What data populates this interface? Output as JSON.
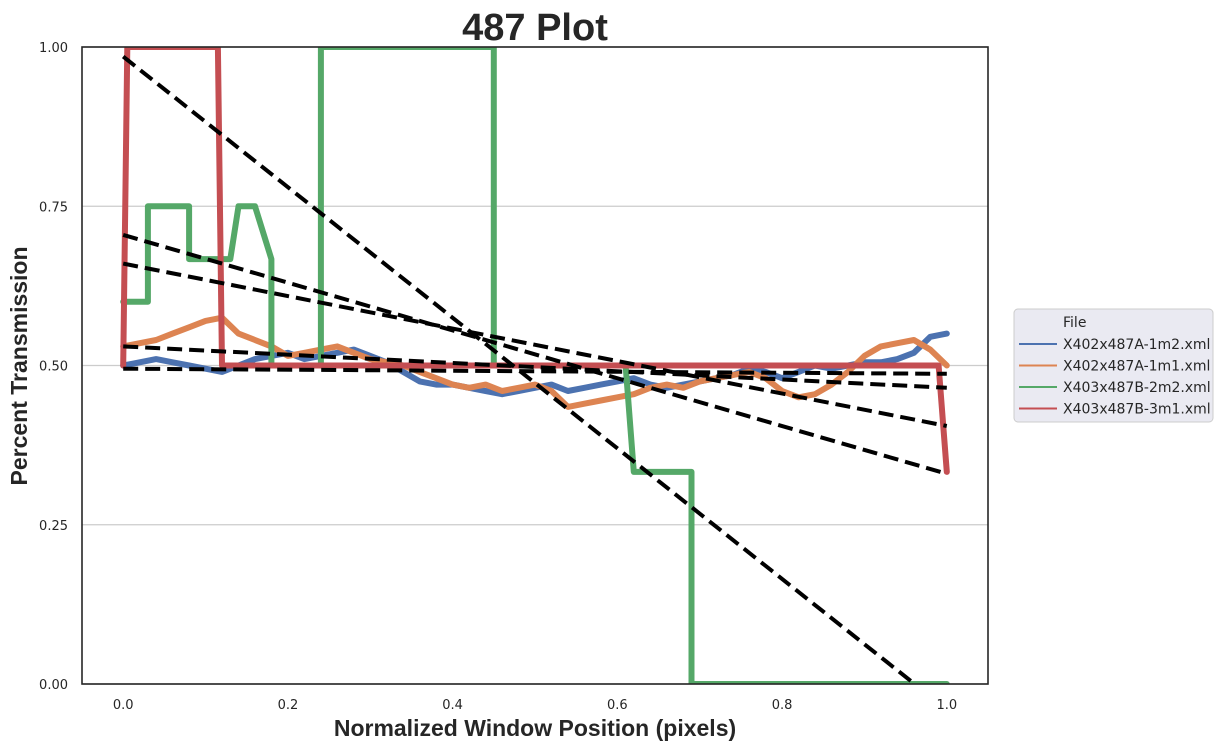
{
  "chart_data": {
    "type": "line",
    "title": "487 Plot",
    "xlabel": "Normalized Window Position (pixels)",
    "ylabel": "Percent Transmission",
    "xlim": [
      -0.05,
      1.05
    ],
    "ylim": [
      0.0,
      1.0
    ],
    "xticks": [
      0.0,
      0.2,
      0.4,
      0.6,
      0.8,
      1.0
    ],
    "xtick_labels": [
      "0.0",
      "0.2",
      "0.4",
      "0.6",
      "0.8",
      "1.0"
    ],
    "yticks": [
      0.0,
      0.25,
      0.5,
      0.75,
      1.0
    ],
    "ytick_labels": [
      "0.00",
      "0.25",
      "0.50",
      "0.75",
      "1.00"
    ],
    "grid": "horizontal",
    "legend": {
      "title": "File",
      "placement": "outside-right"
    },
    "series": [
      {
        "name": "X402x487A-1m2.xml",
        "color": "#4c72b0",
        "x": [
          0.0,
          0.02,
          0.04,
          0.06,
          0.08,
          0.1,
          0.12,
          0.14,
          0.16,
          0.18,
          0.2,
          0.22,
          0.24,
          0.26,
          0.28,
          0.3,
          0.32,
          0.34,
          0.36,
          0.38,
          0.4,
          0.42,
          0.44,
          0.46,
          0.48,
          0.5,
          0.52,
          0.54,
          0.56,
          0.58,
          0.6,
          0.62,
          0.64,
          0.66,
          0.68,
          0.7,
          0.72,
          0.74,
          0.76,
          0.78,
          0.8,
          0.82,
          0.84,
          0.86,
          0.88,
          0.9,
          0.92,
          0.94,
          0.96,
          0.98,
          1.0
        ],
        "values": [
          0.5,
          0.505,
          0.51,
          0.505,
          0.5,
          0.495,
          0.49,
          0.5,
          0.51,
          0.515,
          0.52,
          0.51,
          0.515,
          0.52,
          0.525,
          0.515,
          0.505,
          0.49,
          0.475,
          0.47,
          0.47,
          0.465,
          0.46,
          0.455,
          0.46,
          0.465,
          0.47,
          0.46,
          0.465,
          0.47,
          0.475,
          0.48,
          0.47,
          0.465,
          0.47,
          0.475,
          0.48,
          0.485,
          0.495,
          0.49,
          0.48,
          0.49,
          0.5,
          0.495,
          0.5,
          0.505,
          0.505,
          0.51,
          0.52,
          0.545,
          0.55
        ]
      },
      {
        "name": "X402x487A-1m1.xml",
        "color": "#dd8452",
        "x": [
          0.0,
          0.02,
          0.04,
          0.06,
          0.08,
          0.1,
          0.12,
          0.14,
          0.16,
          0.18,
          0.2,
          0.22,
          0.24,
          0.26,
          0.28,
          0.3,
          0.32,
          0.34,
          0.36,
          0.38,
          0.4,
          0.42,
          0.44,
          0.46,
          0.48,
          0.5,
          0.52,
          0.54,
          0.56,
          0.58,
          0.6,
          0.62,
          0.64,
          0.66,
          0.68,
          0.7,
          0.72,
          0.74,
          0.76,
          0.78,
          0.8,
          0.82,
          0.84,
          0.86,
          0.88,
          0.9,
          0.92,
          0.94,
          0.96,
          0.98,
          1.0
        ],
        "values": [
          0.53,
          0.535,
          0.54,
          0.55,
          0.56,
          0.57,
          0.575,
          0.55,
          0.54,
          0.53,
          0.515,
          0.52,
          0.525,
          0.53,
          0.52,
          0.51,
          0.505,
          0.5,
          0.49,
          0.48,
          0.47,
          0.465,
          0.47,
          0.46,
          0.465,
          0.47,
          0.46,
          0.435,
          0.44,
          0.445,
          0.45,
          0.455,
          0.465,
          0.47,
          0.465,
          0.475,
          0.48,
          0.485,
          0.49,
          0.48,
          0.46,
          0.45,
          0.455,
          0.47,
          0.49,
          0.515,
          0.53,
          0.535,
          0.54,
          0.525,
          0.5
        ]
      },
      {
        "name": "X403x487B-2m2.xml",
        "color": "#55a868",
        "x": [
          0.0,
          0.0,
          0.03,
          0.03,
          0.08,
          0.08,
          0.13,
          0.14,
          0.16,
          0.18,
          0.18,
          0.24,
          0.24,
          0.45,
          0.45,
          0.61,
          0.62,
          0.69,
          0.69,
          1.0
        ],
        "values": [
          0.6,
          0.6,
          0.6,
          0.75,
          0.75,
          0.667,
          0.667,
          0.75,
          0.75,
          0.667,
          0.5,
          0.5,
          1.0,
          1.0,
          0.5,
          0.5,
          0.333,
          0.333,
          0.0,
          0.0
        ]
      },
      {
        "name": "X403x487B-3m1.xml",
        "color": "#c44e52",
        "x": [
          0.0,
          0.005,
          0.005,
          0.115,
          0.12,
          0.12,
          0.99,
          1.0
        ],
        "values": [
          0.5,
          1.0,
          1.0,
          1.0,
          0.5,
          0.5,
          0.5,
          0.333
        ]
      }
    ],
    "trend_lines": [
      {
        "x": [
          0.0,
          1.0
        ],
        "values": [
          0.985,
          -0.04
        ]
      },
      {
        "x": [
          0.0,
          1.0
        ],
        "values": [
          0.705,
          0.33
        ]
      },
      {
        "x": [
          0.0,
          1.0
        ],
        "values": [
          0.66,
          0.405
        ]
      },
      {
        "x": [
          0.0,
          1.0
        ],
        "values": [
          0.53,
          0.465
        ]
      },
      {
        "x": [
          0.0,
          1.0
        ],
        "values": [
          0.495,
          0.487
        ]
      }
    ]
  }
}
